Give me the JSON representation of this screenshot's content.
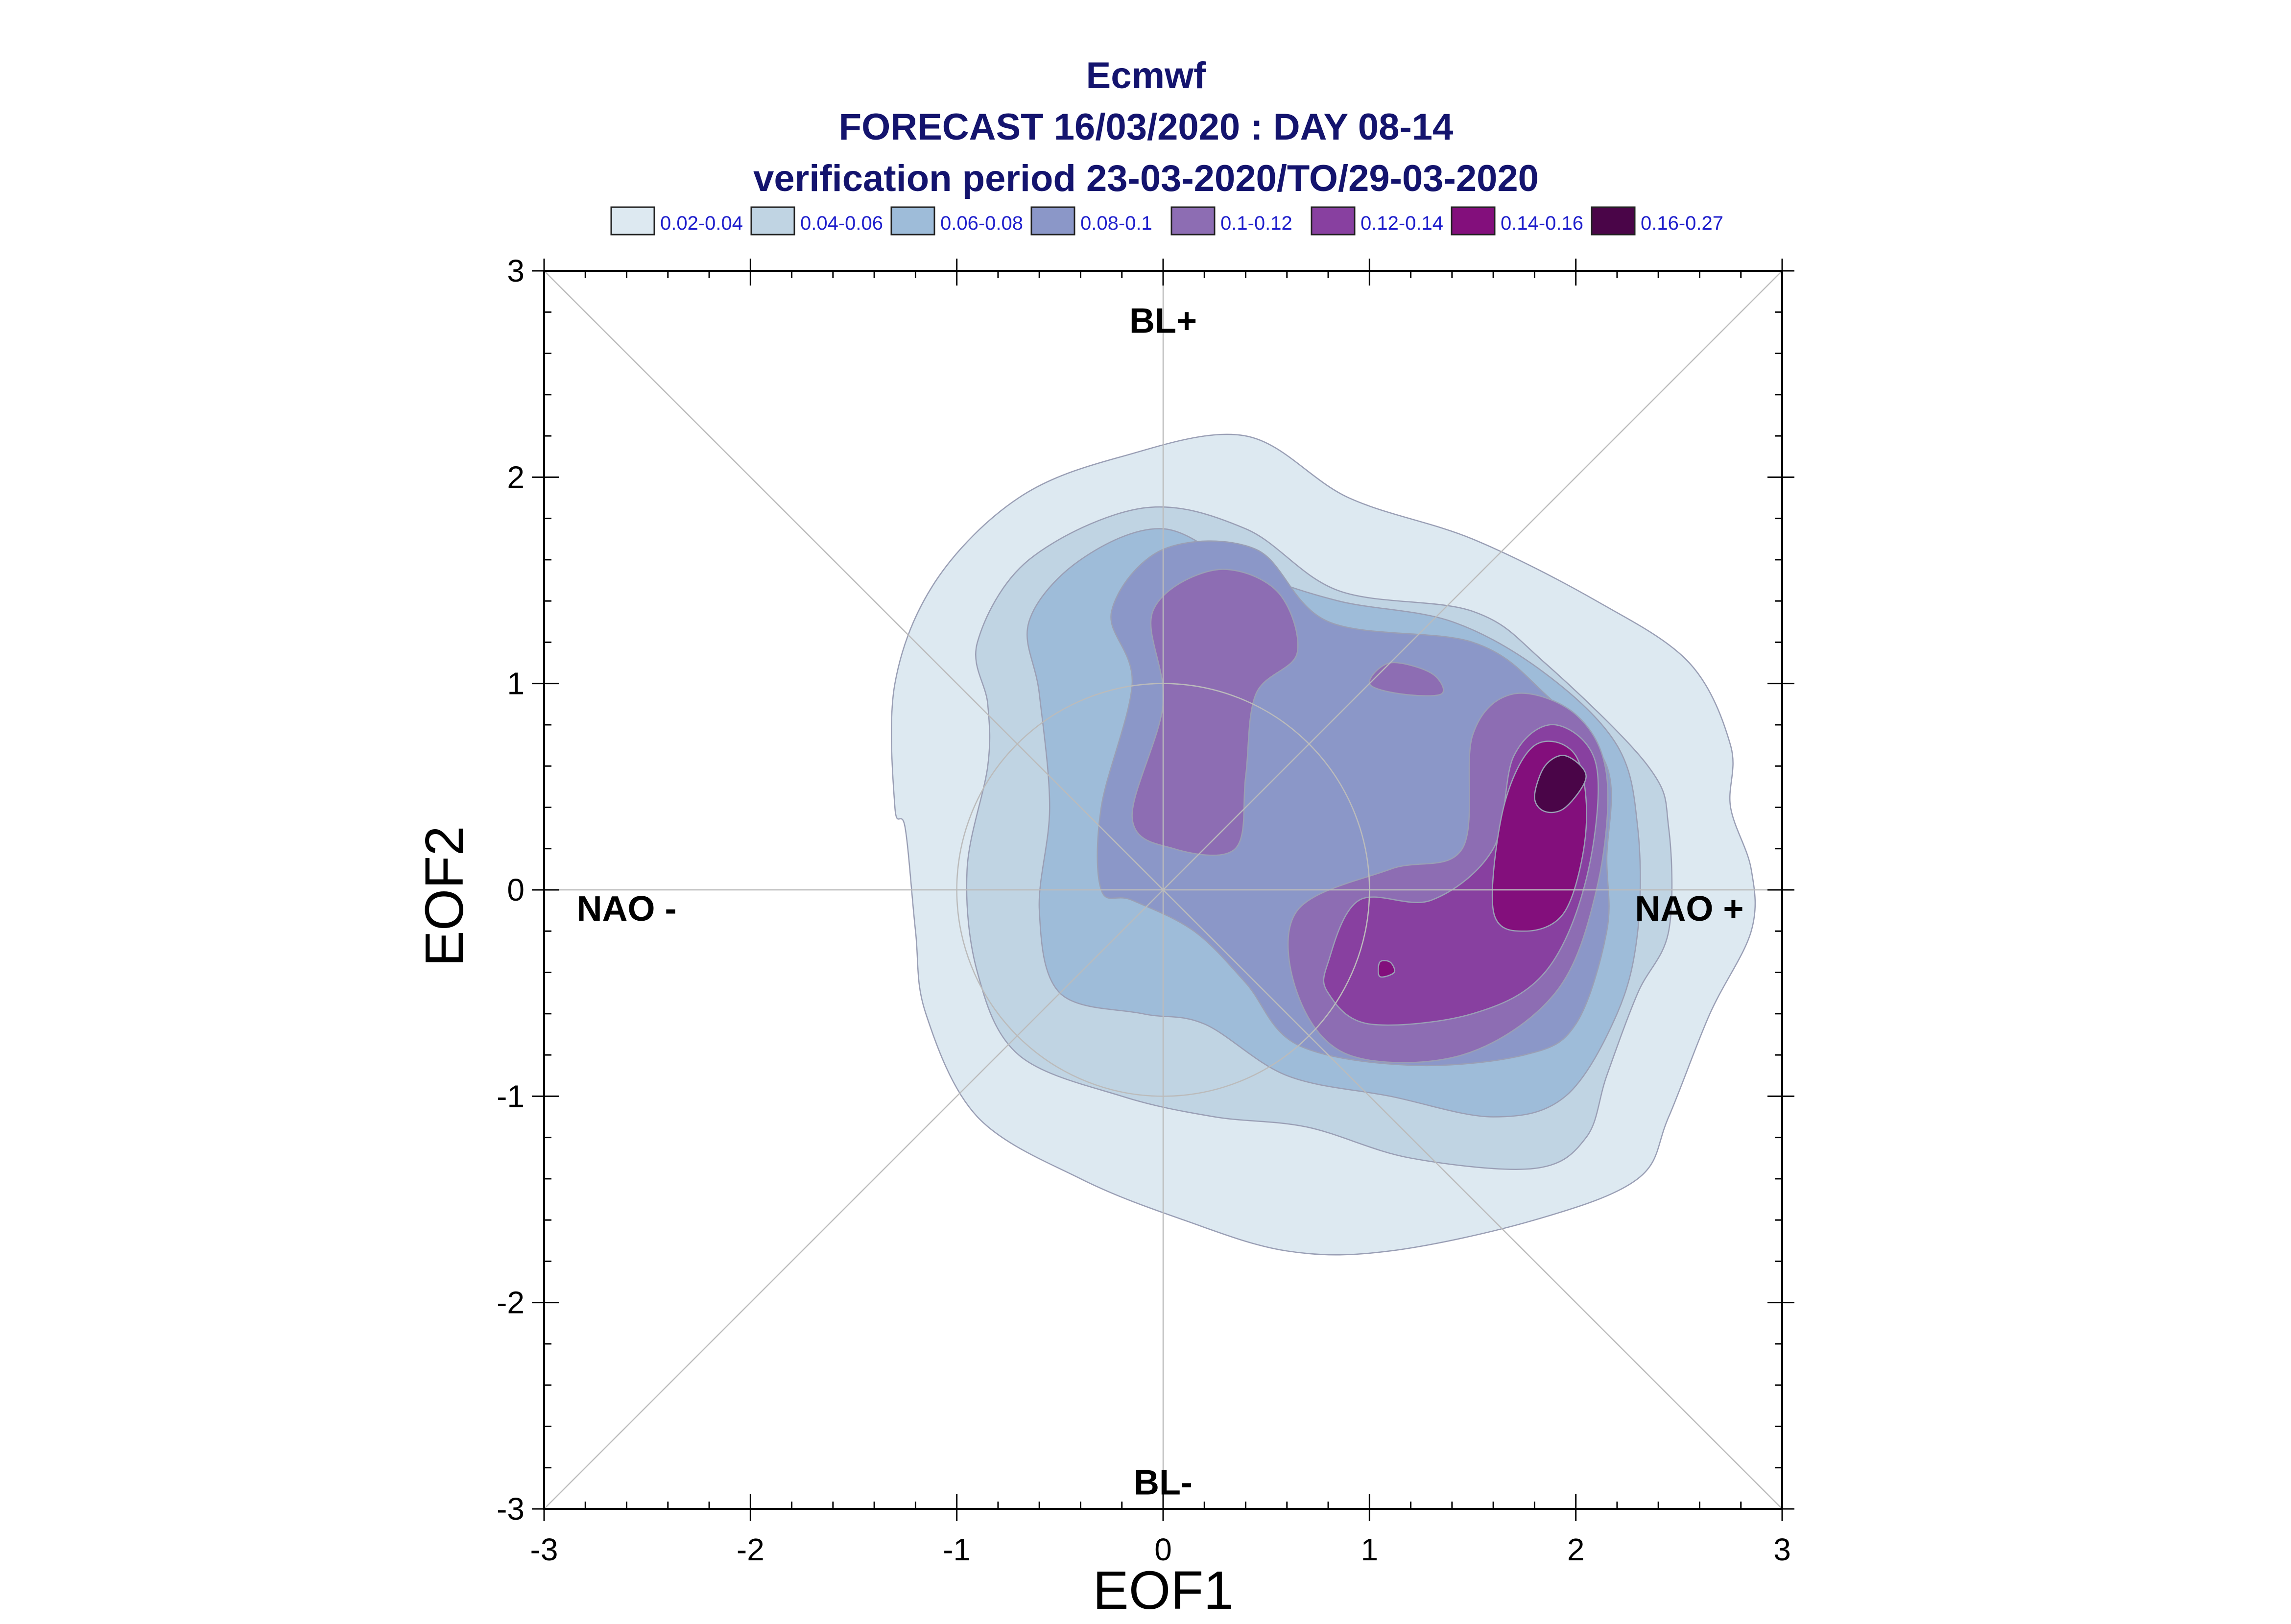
{
  "chart_data": {
    "type": "contour",
    "title_lines": [
      "Ecmwf",
      "FORECAST 16/03/2020 : DAY 08-14",
      "verification period 23-03-2020/TO/29-03-2020"
    ],
    "title_color": "#14146e",
    "xlabel": "EOF1",
    "ylabel": "EOF2",
    "xlim": [
      -3,
      3
    ],
    "ylim": [
      -3,
      3
    ],
    "x_ticks": [
      "-3",
      "-2",
      "-1",
      "0",
      "1",
      "2",
      "3"
    ],
    "y_ticks": [
      "3",
      "2",
      "1",
      "0",
      "-1",
      "-2",
      "-3"
    ],
    "grid": false,
    "diagonal_reference_lines": true,
    "reference_circle_radius": 1,
    "regime_labels": [
      "BL+",
      "BL-",
      "NAO -",
      "NAO +"
    ],
    "legend_placement": "top",
    "legend": [
      {
        "label": "0.02-0.04",
        "color": "#dde9f1"
      },
      {
        "label": "0.04-0.06",
        "color": "#c0d4e3"
      },
      {
        "label": "0.06-0.08",
        "color": "#9ebcd9"
      },
      {
        "label": "0.08-0.1",
        "color": "#8b97c8"
      },
      {
        "label": "0.1-0.12",
        "color": "#8d6db3"
      },
      {
        "label": "0.12-0.14",
        "color": "#8840a0"
      },
      {
        "label": "0.14-0.16",
        "color": "#830f7c"
      },
      {
        "label": "0.16-0.27",
        "color": "#4a0548"
      }
    ],
    "legend_text_color": "#1e1ecc",
    "levels": [
      {
        "range": "0.02-0.04",
        "color": "#dde9f1",
        "regions": [
          [
            [
              -1.3,
              0.4
            ],
            [
              -1.3,
              1.0
            ],
            [
              -1.1,
              1.5
            ],
            [
              -0.7,
              1.9
            ],
            [
              -0.2,
              2.1
            ],
            [
              0.4,
              2.2
            ],
            [
              0.9,
              1.9
            ],
            [
              1.5,
              1.7
            ],
            [
              2.1,
              1.4
            ],
            [
              2.55,
              1.1
            ],
            [
              2.75,
              0.7
            ],
            [
              2.75,
              0.4
            ],
            [
              2.85,
              0.1
            ],
            [
              2.85,
              -0.2
            ],
            [
              2.65,
              -0.6
            ],
            [
              2.45,
              -1.1
            ],
            [
              2.3,
              -1.4
            ],
            [
              1.8,
              -1.6
            ],
            [
              1.1,
              -1.75
            ],
            [
              0.6,
              -1.75
            ],
            [
              0.1,
              -1.6
            ],
            [
              -0.4,
              -1.4
            ],
            [
              -0.9,
              -1.1
            ],
            [
              -1.15,
              -0.6
            ],
            [
              -1.2,
              -0.2
            ],
            [
              -1.25,
              0.3
            ]
          ]
        ]
      },
      {
        "range": "0.04-0.06",
        "color": "#c0d4e3",
        "regions": [
          [
            [
              -0.85,
              0.9
            ],
            [
              -0.9,
              1.2
            ],
            [
              -0.65,
              1.6
            ],
            [
              -0.1,
              1.85
            ],
            [
              0.4,
              1.75
            ],
            [
              0.85,
              1.45
            ],
            [
              1.5,
              1.35
            ],
            [
              1.85,
              1.1
            ],
            [
              2.35,
              0.6
            ],
            [
              2.45,
              0.3
            ],
            [
              2.45,
              -0.2
            ],
            [
              2.3,
              -0.5
            ],
            [
              2.15,
              -0.9
            ],
            [
              2.05,
              -1.2
            ],
            [
              1.8,
              -1.35
            ],
            [
              1.2,
              -1.3
            ],
            [
              0.7,
              -1.15
            ],
            [
              0.25,
              -1.1
            ],
            [
              -0.2,
              -1.0
            ],
            [
              -0.7,
              -0.8
            ],
            [
              -0.9,
              -0.4
            ],
            [
              -0.95,
              0.1
            ],
            [
              -0.85,
              0.6
            ]
          ]
        ]
      },
      {
        "range": "0.06-0.08",
        "color": "#9ebcd9",
        "regions": [
          [
            [
              -0.6,
              0.95
            ],
            [
              -0.65,
              1.3
            ],
            [
              -0.4,
              1.6
            ],
            [
              0.0,
              1.75
            ],
            [
              0.4,
              1.55
            ],
            [
              0.85,
              1.4
            ],
            [
              1.4,
              1.3
            ],
            [
              1.85,
              1.05
            ],
            [
              2.2,
              0.7
            ],
            [
              2.3,
              0.3
            ],
            [
              2.3,
              -0.2
            ],
            [
              2.2,
              -0.6
            ],
            [
              1.95,
              -1.0
            ],
            [
              1.6,
              -1.1
            ],
            [
              1.1,
              -1.0
            ],
            [
              0.6,
              -0.9
            ],
            [
              0.2,
              -0.65
            ],
            [
              -0.1,
              -0.6
            ],
            [
              -0.5,
              -0.5
            ],
            [
              -0.6,
              -0.1
            ],
            [
              -0.55,
              0.4
            ]
          ]
        ]
      },
      {
        "range": "0.08-0.1",
        "color": "#8b97c8",
        "regions": [
          [
            [
              -0.3,
              0.4
            ],
            [
              -0.15,
              1.0
            ],
            [
              -0.25,
              1.35
            ],
            [
              0.0,
              1.65
            ],
            [
              0.45,
              1.65
            ],
            [
              0.8,
              1.3
            ],
            [
              1.5,
              1.2
            ],
            [
              1.85,
              0.95
            ],
            [
              2.15,
              0.6
            ],
            [
              2.15,
              0.15
            ],
            [
              2.15,
              -0.2
            ],
            [
              2.0,
              -0.65
            ],
            [
              1.75,
              -0.8
            ],
            [
              1.2,
              -0.85
            ],
            [
              0.65,
              -0.75
            ],
            [
              0.4,
              -0.45
            ],
            [
              0.15,
              -0.2
            ],
            [
              -0.15,
              -0.05
            ],
            [
              -0.3,
              0.0
            ]
          ]
        ]
      },
      {
        "range": "0.1-0.12",
        "color": "#8d6db3",
        "regions": [
          [
            [
              -0.15,
              0.35
            ],
            [
              0.0,
              0.9
            ],
            [
              -0.05,
              1.35
            ],
            [
              0.25,
              1.55
            ],
            [
              0.55,
              1.45
            ],
            [
              0.65,
              1.15
            ],
            [
              0.45,
              0.95
            ],
            [
              0.4,
              0.55
            ],
            [
              0.35,
              0.2
            ],
            [
              0.05,
              0.2
            ]
          ],
          [
            [
              1.1,
              1.1
            ],
            [
              1.3,
              1.05
            ],
            [
              1.35,
              0.95
            ],
            [
              1.15,
              0.95
            ],
            [
              1.0,
              1.0
            ]
          ],
          [
            [
              0.65,
              -0.1
            ],
            [
              1.1,
              0.1
            ],
            [
              1.45,
              0.2
            ],
            [
              1.5,
              0.75
            ],
            [
              1.7,
              0.95
            ],
            [
              2.0,
              0.85
            ],
            [
              2.15,
              0.55
            ],
            [
              2.1,
              0.0
            ],
            [
              1.9,
              -0.5
            ],
            [
              1.45,
              -0.8
            ],
            [
              0.9,
              -0.8
            ],
            [
              0.65,
              -0.5
            ]
          ]
        ]
      },
      {
        "range": "0.12-0.14",
        "color": "#8840a0",
        "regions": [
          [
            [
              0.8,
              -0.35
            ],
            [
              0.95,
              -0.05
            ],
            [
              1.3,
              -0.05
            ],
            [
              1.6,
              0.2
            ],
            [
              1.7,
              0.65
            ],
            [
              1.9,
              0.8
            ],
            [
              2.1,
              0.6
            ],
            [
              2.05,
              0.05
            ],
            [
              1.85,
              -0.4
            ],
            [
              1.5,
              -0.6
            ],
            [
              1.0,
              -0.65
            ],
            [
              0.8,
              -0.5
            ]
          ]
        ]
      },
      {
        "range": "0.14-0.16",
        "color": "#830f7c",
        "regions": [
          [
            [
              1.6,
              -0.1
            ],
            [
              1.65,
              0.4
            ],
            [
              1.8,
              0.7
            ],
            [
              2.0,
              0.65
            ],
            [
              2.05,
              0.3
            ],
            [
              1.95,
              -0.1
            ],
            [
              1.75,
              -0.2
            ]
          ],
          [
            [
              1.05,
              -0.35
            ],
            [
              1.1,
              -0.35
            ],
            [
              1.12,
              -0.4
            ],
            [
              1.05,
              -0.42
            ]
          ]
        ]
      },
      {
        "range": "0.16-0.27",
        "color": "#4a0548",
        "regions": [
          [
            [
              1.8,
              0.45
            ],
            [
              1.85,
              0.6
            ],
            [
              1.95,
              0.65
            ],
            [
              2.05,
              0.55
            ],
            [
              1.95,
              0.4
            ],
            [
              1.85,
              0.38
            ]
          ]
        ]
      }
    ]
  }
}
